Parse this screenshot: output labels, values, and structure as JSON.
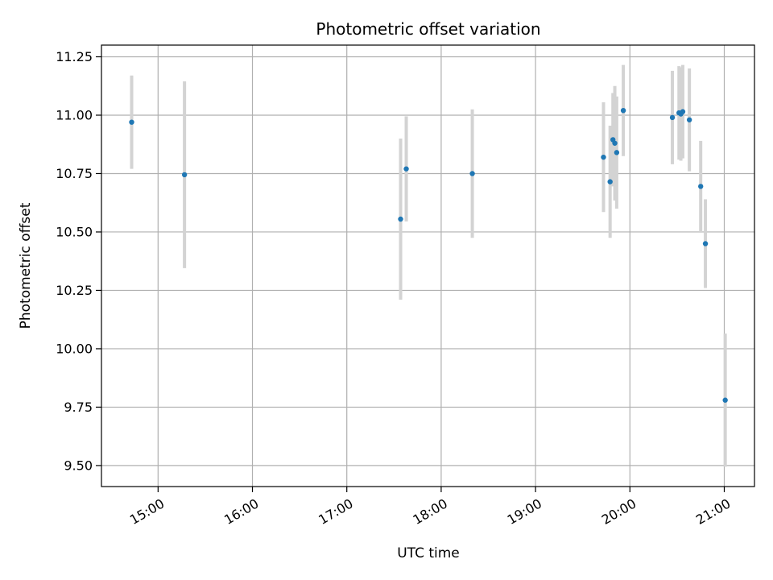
{
  "chart_data": {
    "type": "scatter",
    "title": "Photometric offset variation",
    "xlabel": "UTC time",
    "ylabel": "Photometric offset",
    "grid": true,
    "xlim": [
      14.4,
      21.32
    ],
    "ylim": [
      9.41,
      11.3
    ],
    "x_ticks": [
      {
        "value": 15,
        "label": "15:00"
      },
      {
        "value": 16,
        "label": "16:00"
      },
      {
        "value": 17,
        "label": "17:00"
      },
      {
        "value": 18,
        "label": "18:00"
      },
      {
        "value": 19,
        "label": "19:00"
      },
      {
        "value": 20,
        "label": "20:00"
      },
      {
        "value": 21,
        "label": "21:00"
      }
    ],
    "y_ticks": [
      {
        "value": 9.5,
        "label": "9.50"
      },
      {
        "value": 9.75,
        "label": "9.75"
      },
      {
        "value": 10.0,
        "label": "10.00"
      },
      {
        "value": 10.25,
        "label": "10.25"
      },
      {
        "value": 10.5,
        "label": "10.50"
      },
      {
        "value": 10.75,
        "label": "10.75"
      },
      {
        "value": 11.0,
        "label": "11.00"
      },
      {
        "value": 11.25,
        "label": "11.25"
      }
    ],
    "point_color": "#1f77b4",
    "errorbar_color": "#d3d3d3",
    "points": [
      {
        "x": 14.72,
        "y": 10.97,
        "err": 0.2
      },
      {
        "x": 15.28,
        "y": 10.745,
        "err": 0.4
      },
      {
        "x": 17.57,
        "y": 10.555,
        "err": 0.345
      },
      {
        "x": 17.63,
        "y": 10.77,
        "err": 0.225
      },
      {
        "x": 18.33,
        "y": 10.75,
        "err": 0.275
      },
      {
        "x": 19.72,
        "y": 10.82,
        "err": 0.235
      },
      {
        "x": 19.79,
        "y": 10.715,
        "err": 0.24
      },
      {
        "x": 19.82,
        "y": 10.895,
        "err": 0.2
      },
      {
        "x": 19.84,
        "y": 10.88,
        "err": 0.245
      },
      {
        "x": 19.86,
        "y": 10.84,
        "err": 0.24
      },
      {
        "x": 19.93,
        "y": 11.02,
        "err": 0.195
      },
      {
        "x": 20.45,
        "y": 10.99,
        "err": 0.2
      },
      {
        "x": 20.52,
        "y": 11.01,
        "err": 0.2
      },
      {
        "x": 20.54,
        "y": 11.005,
        "err": 0.2
      },
      {
        "x": 20.56,
        "y": 11.015,
        "err": 0.2
      },
      {
        "x": 20.63,
        "y": 10.98,
        "err": 0.22
      },
      {
        "x": 20.75,
        "y": 10.695,
        "err": 0.195
      },
      {
        "x": 20.8,
        "y": 10.45,
        "err": 0.19
      },
      {
        "x": 21.01,
        "y": 9.78,
        "err": 0.285
      }
    ]
  }
}
